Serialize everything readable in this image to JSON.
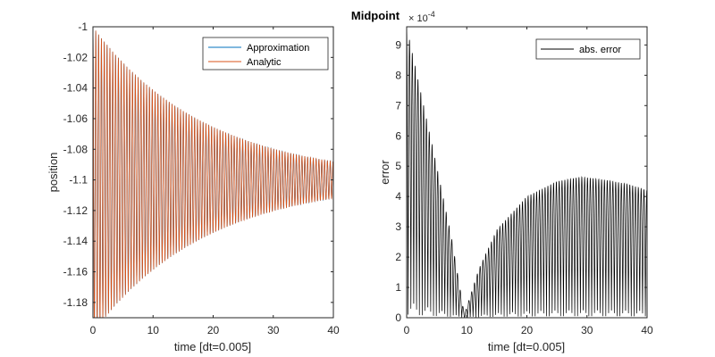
{
  "figure_title": "Midpoint",
  "chart_data": [
    {
      "type": "line",
      "xlabel": "time [dt=0.005]",
      "ylabel": "position",
      "xlim": [
        0,
        40
      ],
      "ylim": [
        -1.19,
        -1.0
      ],
      "x_ticks": [
        0,
        10,
        20,
        30,
        40
      ],
      "y_ticks": [
        -1.18,
        -1.16,
        -1.14,
        -1.12,
        -1.1,
        -1.08,
        -1.06,
        -1.04,
        -1.02,
        -1
      ],
      "x_tick_labels": [
        "0",
        "10",
        "20",
        "30",
        "40"
      ],
      "y_tick_labels": [
        "-1.18",
        "-1.16",
        "-1.14",
        "-1.12",
        "-1.1",
        "-1.08",
        "-1.06",
        "-1.04",
        "-1.02",
        "-1"
      ],
      "legend_position": "top-right",
      "series": [
        {
          "name": "Approximation",
          "color": "#0072BD",
          "model": "damped_oscillation",
          "center": -1.1,
          "initial_amplitude": 0.1,
          "final_amplitude": 0.012,
          "period": 0.47
        },
        {
          "name": "Analytic",
          "color": "#D95319",
          "model": "damped_oscillation",
          "center": -1.1,
          "initial_amplitude": 0.1,
          "final_amplitude": 0.012,
          "period": 0.47
        }
      ]
    },
    {
      "type": "line",
      "xlabel": "time [dt=0.005]",
      "ylabel": "error",
      "xlim": [
        0,
        40
      ],
      "ylim": [
        0,
        9.6
      ],
      "y_exponent_label": "× 10",
      "y_exponent_power": "-4",
      "x_ticks": [
        0,
        10,
        20,
        30,
        40
      ],
      "y_ticks": [
        0,
        1,
        2,
        3,
        4,
        5,
        6,
        7,
        8,
        9
      ],
      "x_tick_labels": [
        "0",
        "10",
        "20",
        "30",
        "40"
      ],
      "y_tick_labels": [
        "0",
        "1",
        "2",
        "3",
        "4",
        "5",
        "6",
        "7",
        "8",
        "9"
      ],
      "legend_position": "top-right",
      "series": [
        {
          "name": "abs. error",
          "color": "#000000",
          "model": "oscillating_error_envelope",
          "envelope_points": [
            [
              0,
              9.6
            ],
            [
              2.5,
              7.3
            ],
            [
              5,
              5.0
            ],
            [
              7.5,
              2.6
            ],
            [
              9.6,
              0.1
            ],
            [
              12,
              1.6
            ],
            [
              15,
              2.9
            ],
            [
              20,
              4.0
            ],
            [
              25,
              4.5
            ],
            [
              29,
              4.65
            ],
            [
              33,
              4.55
            ],
            [
              37,
              4.4
            ],
            [
              40,
              4.2
            ]
          ],
          "period": 0.47
        }
      ]
    }
  ]
}
